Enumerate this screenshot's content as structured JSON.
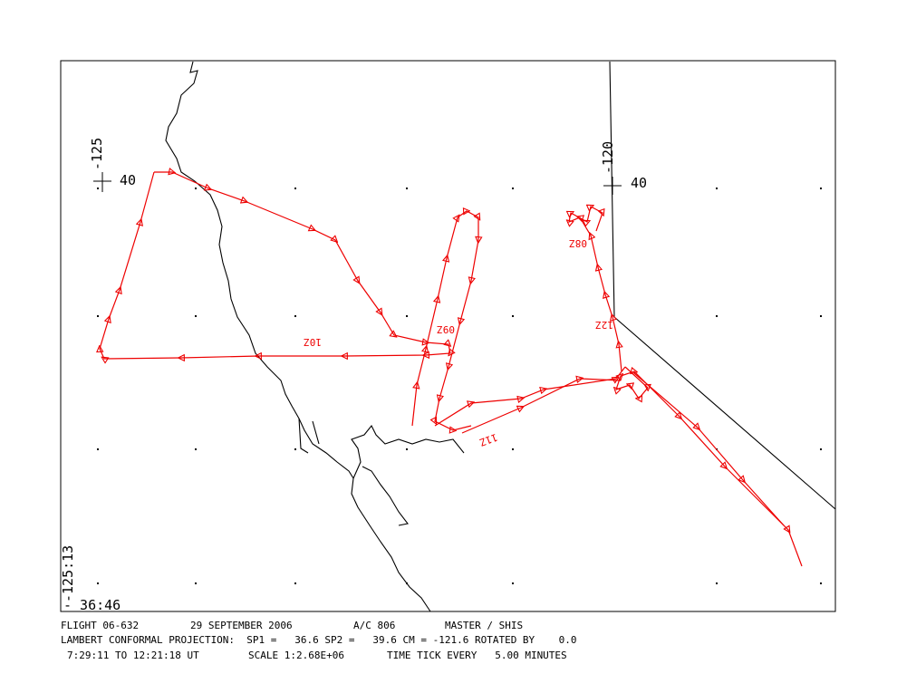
{
  "map": {
    "corner_labels": {
      "lon_left": "-125",
      "lat_left": "40",
      "lon_right": "-120",
      "lat_right": "40",
      "corner_lon": "-125:13",
      "corner_lat": "- 36:46"
    },
    "time_labels": [
      "10Z",
      "09Z",
      "11Z",
      "08Z",
      "12Z"
    ],
    "footer": {
      "line1": [
        "FLIGHT 06-632",
        "29 SEPTEMBER 2006",
        "A/C 806",
        "MASTER / SHIS"
      ],
      "line2": "LAMBERT CONFORMAL PROJECTION:  SP1 =   36.6 SP2 =   39.6 CM = -121.6 ROTATED BY    0.0",
      "line3": [
        "7:29:11 TO 12:21:18 UT",
        "SCALE 1:2.68E+06",
        "TIME TICK EVERY   5.00 MINUTES"
      ]
    }
  }
}
